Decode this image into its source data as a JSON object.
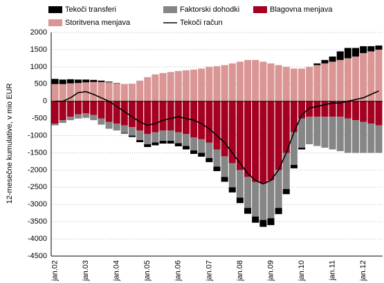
{
  "chart_data": {
    "type": "bar",
    "stacked": true,
    "y_label": "12-mesečne kumulative, v mio EUR",
    "categories": [
      "jan.02",
      null,
      null,
      null,
      "jan.03",
      null,
      null,
      null,
      "jan.04",
      null,
      null,
      null,
      "jan.05",
      null,
      null,
      null,
      "jan.06",
      null,
      null,
      null,
      "jan.07",
      null,
      null,
      null,
      "jan.08",
      null,
      null,
      null,
      "jan.09",
      null,
      null,
      null,
      "jan.10",
      null,
      null,
      null,
      "jan.11",
      null,
      null,
      null,
      "jan.12",
      null,
      null
    ],
    "ylim": [
      -4500,
      2000
    ],
    "yticks": [
      -4500,
      -4000,
      -3500,
      -3000,
      -2500,
      -2000,
      -1500,
      -1000,
      -500,
      0,
      500,
      1000,
      1500,
      2000
    ],
    "grid": true,
    "series": [
      {
        "name": "Tekoči transferi",
        "color": "#000000",
        "values": [
          150,
          130,
          120,
          100,
          80,
          60,
          40,
          20,
          10,
          -20,
          -40,
          -60,
          -80,
          -80,
          -80,
          -80,
          -90,
          -100,
          -100,
          -110,
          -120,
          -130,
          -140,
          -150,
          -160,
          -170,
          -180,
          -200,
          -200,
          -180,
          -150,
          -100,
          -50,
          0,
          50,
          100,
          150,
          250,
          300,
          250,
          200,
          150,
          120
        ]
      },
      {
        "name": "Faktorski dohodki",
        "color": "#868686",
        "values": [
          -50,
          -80,
          -100,
          -120,
          -130,
          -150,
          -180,
          -200,
          -200,
          -220,
          -250,
          -280,
          -300,
          -300,
          -300,
          -300,
          -320,
          -350,
          -380,
          -400,
          -450,
          -500,
          -600,
          -700,
          -800,
          -900,
          -1000,
          -1050,
          -1100,
          -1100,
          -1050,
          -950,
          -850,
          -800,
          -850,
          -900,
          -950,
          -1000,
          -1000,
          -950,
          -900,
          -850,
          -800
        ]
      },
      {
        "name": "Blagovna menjava",
        "color": "#a50021",
        "values": [
          -650,
          -550,
          -450,
          -380,
          -350,
          -400,
          -500,
          -600,
          -650,
          -700,
          -750,
          -850,
          -950,
          -900,
          -850,
          -850,
          -900,
          -950,
          -1050,
          -1100,
          -1200,
          -1400,
          -1600,
          -1800,
          -2000,
          -2200,
          -2350,
          -2400,
          -2300,
          -2000,
          -1500,
          -900,
          -500,
          -450,
          -450,
          -450,
          -450,
          -450,
          -500,
          -550,
          -600,
          -650,
          -700
        ]
      },
      {
        "name": "Storitvena menjava",
        "color": "#d99694",
        "values": [
          500,
          500,
          520,
          530,
          550,
          560,
          560,
          550,
          520,
          500,
          510,
          600,
          700,
          780,
          820,
          850,
          880,
          900,
          920,
          950,
          1000,
          1020,
          1050,
          1100,
          1150,
          1200,
          1200,
          1150,
          1100,
          1050,
          1000,
          950,
          950,
          1000,
          1050,
          1100,
          1150,
          1200,
          1250,
          1300,
          1400,
          1450,
          1500
        ]
      },
      {
        "name": "Tekoči račun",
        "type": "line",
        "color": "#000000",
        "values": [
          0,
          0,
          100,
          250,
          280,
          200,
          100,
          0,
          -150,
          -300,
          -450,
          -600,
          -700,
          -650,
          -550,
          -500,
          -450,
          -500,
          -550,
          -650,
          -800,
          -1000,
          -1200,
          -1500,
          -1800,
          -2100,
          -2300,
          -2400,
          -2300,
          -2000,
          -1500,
          -900,
          -400,
          -200,
          -150,
          -100,
          -50,
          -50,
          0,
          50,
          100,
          200,
          300
        ]
      }
    ]
  }
}
